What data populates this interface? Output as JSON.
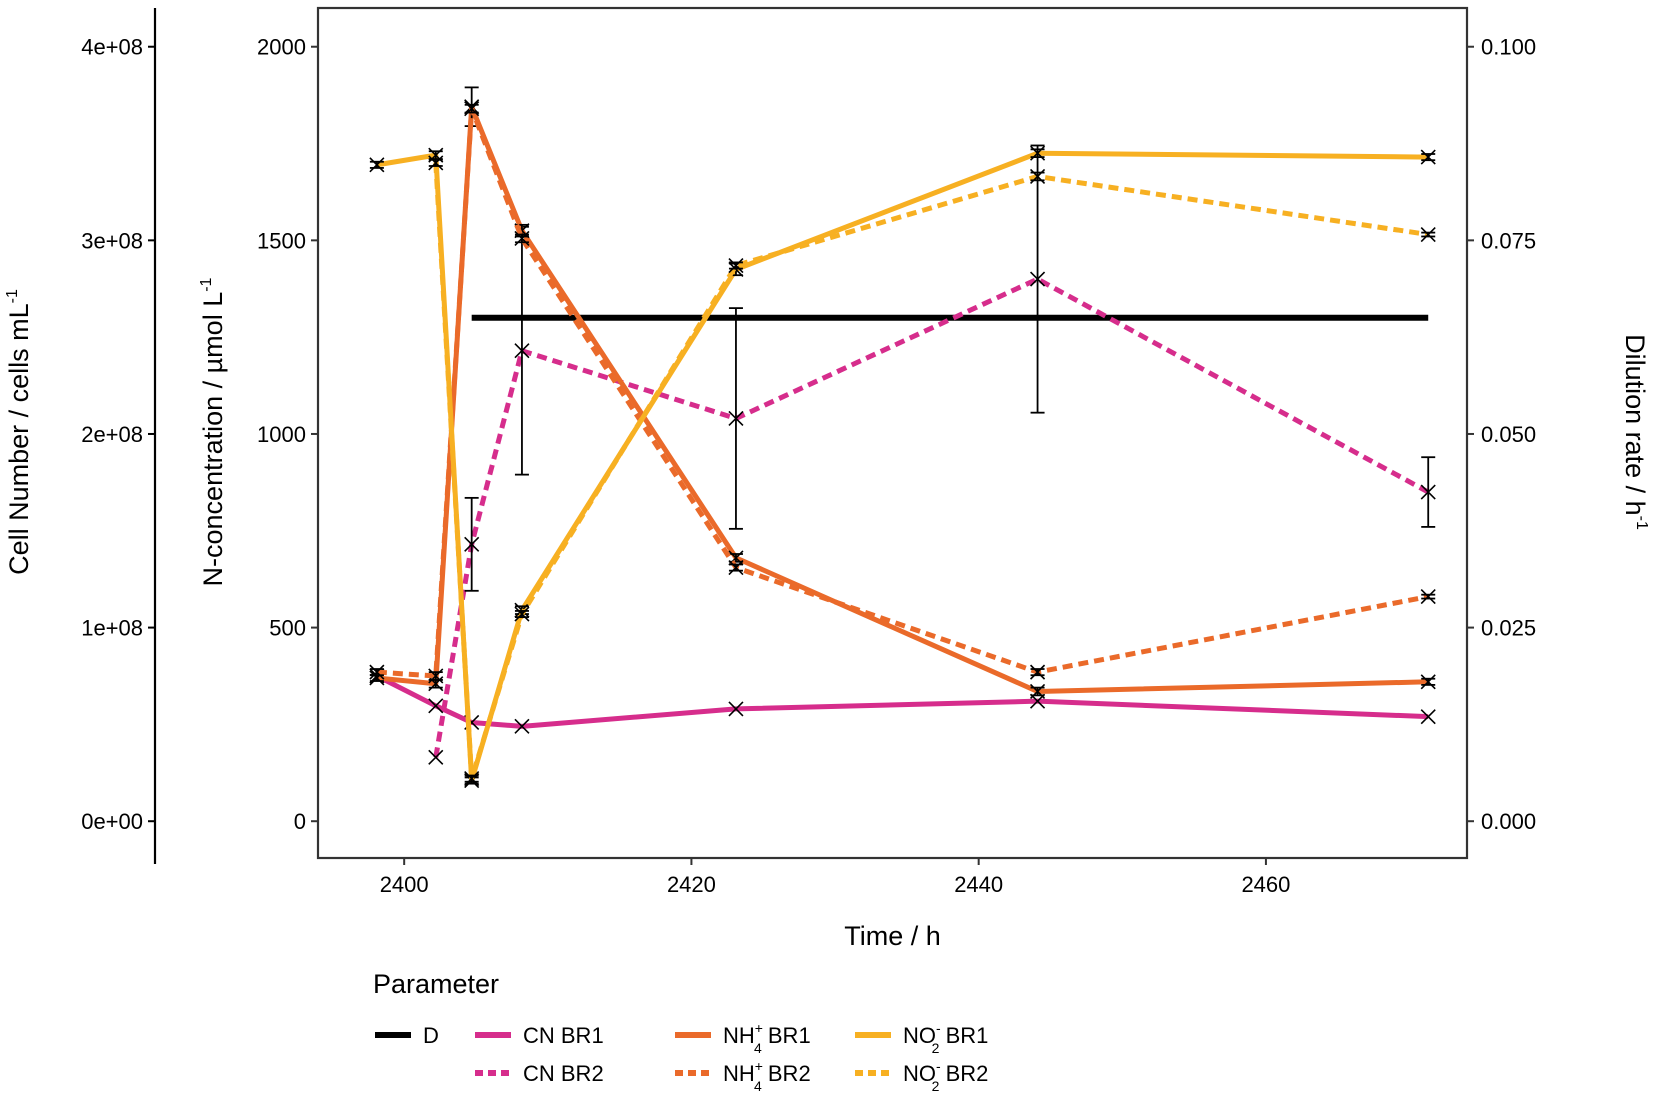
{
  "chart_data": {
    "type": "line",
    "xlabel": "Time / h",
    "ylabel_left": "Cell Number / cells mL",
    "ylabel_left_sup": "-1",
    "ylabel_mid_main": "N-concentration / µmol L",
    "ylabel_mid_sup": "-1",
    "ylabel_right_main": "Dilution rate / h",
    "ylabel_right_sup": "-1",
    "xlim": [
      2394,
      2474
    ],
    "ylim": [
      -95,
      2100
    ],
    "y_cells_lim": [
      -19000000,
      420000000
    ],
    "y_dilution_lim": [
      -0.00475,
      0.105
    ],
    "x_ticks": [
      2400,
      2420,
      2440,
      2460
    ],
    "x_tick_labels": [
      "2400",
      "2420",
      "2440",
      "2460"
    ],
    "y_ticks": [
      0,
      500,
      1000,
      1500,
      2000
    ],
    "y_tick_labels": [
      "0",
      "500",
      "1000",
      "1500",
      "2000"
    ],
    "y_cells_ticks": [
      0,
      100000000,
      200000000,
      300000000,
      400000000
    ],
    "y_cells_tick_labels": [
      "0e+00",
      "1e+08",
      "2e+08",
      "3e+08",
      "4e+08"
    ],
    "y_dilution_ticks": [
      0,
      0.025,
      0.05,
      0.075,
      0.1
    ],
    "y_dilution_tick_labels": [
      "0.000",
      "0.025",
      "0.050",
      "0.075",
      "0.100"
    ],
    "legend": {
      "title": "Parameter",
      "items": [
        {
          "series": 0,
          "label": "D",
          "sub": "",
          "sup": "",
          "tail": ""
        },
        {
          "series": 1,
          "label": "CN BR1",
          "sub": "",
          "sup": "",
          "tail": ""
        },
        {
          "series": 2,
          "label": "CN BR2",
          "sub": "",
          "sup": "",
          "tail": ""
        },
        {
          "series": 3,
          "label": "NH",
          "sub": "4",
          "sup": "+",
          "tail": " BR1"
        },
        {
          "series": 4,
          "label": "NH",
          "sub": "4",
          "sup": "+",
          "tail": " BR2"
        },
        {
          "series": 5,
          "label": "NO",
          "sub": "2",
          "sup": "-",
          "tail": " BR1"
        },
        {
          "series": 6,
          "label": "NO",
          "sub": "2",
          "sup": "-",
          "tail": " BR2"
        }
      ]
    },
    "series": [
      {
        "name": "D",
        "color": "#000000",
        "dashed": false,
        "markers": false,
        "x": [
          2404.7,
          2471.3
        ],
        "y": [
          1300,
          1300
        ]
      },
      {
        "name": "CN BR1",
        "color": "#d62d8c",
        "dashed": false,
        "markers": true,
        "x": [
          2398.1,
          2402.2,
          2404.7,
          2408.2,
          2423.1,
          2444.1,
          2471.3
        ],
        "y": [
          375,
          298,
          255,
          245,
          290,
          310,
          270
        ],
        "err": [
          0,
          0,
          0,
          0,
          0,
          0,
          0
        ]
      },
      {
        "name": "CN BR2",
        "color": "#d62d8c",
        "dashed": true,
        "markers": true,
        "x": [
          2402.2,
          2404.7,
          2408.2,
          2423.1,
          2444.1,
          2471.3
        ],
        "y": [
          165,
          715,
          1215,
          1040,
          1400,
          850
        ],
        "err": [
          0,
          120,
          320,
          285,
          345,
          90
        ]
      },
      {
        "name": "NH4+ BR1",
        "color": "#ea6a2a",
        "dashed": false,
        "markers": true,
        "x": [
          2398.1,
          2402.2,
          2404.7,
          2408.2,
          2423.1,
          2444.1,
          2471.3
        ],
        "y": [
          370,
          355,
          1845,
          1525,
          680,
          335,
          360
        ],
        "err": [
          8,
          10,
          50,
          15,
          10,
          10,
          8
        ]
      },
      {
        "name": "NH4+ BR2",
        "color": "#ea6a2a",
        "dashed": true,
        "markers": true,
        "x": [
          2398.1,
          2402.2,
          2404.7,
          2408.2,
          2423.1,
          2444.1,
          2471.3
        ],
        "y": [
          385,
          375,
          1840,
          1505,
          655,
          385,
          580
        ],
        "err": [
          8,
          10,
          10,
          10,
          8,
          8,
          5
        ]
      },
      {
        "name": "NO2- BR1",
        "color": "#f7b022",
        "dashed": false,
        "markers": true,
        "x": [
          2398.1,
          2402.2,
          2404.7,
          2408.2,
          2423.1,
          2444.1,
          2471.3
        ],
        "y": [
          1695,
          1720,
          105,
          545,
          1425,
          1725,
          1715
        ],
        "err": [
          8,
          10,
          8,
          10,
          15,
          10,
          8
        ]
      },
      {
        "name": "NO2- BR2",
        "color": "#f7b022",
        "dashed": true,
        "markers": true,
        "x": [
          2402.2,
          2404.7,
          2408.2,
          2423.1,
          2444.1,
          2471.3
        ],
        "y": [
          1700,
          110,
          535,
          1435,
          1665,
          1515
        ],
        "err": [
          8,
          8,
          8,
          8,
          10,
          5
        ]
      }
    ]
  }
}
